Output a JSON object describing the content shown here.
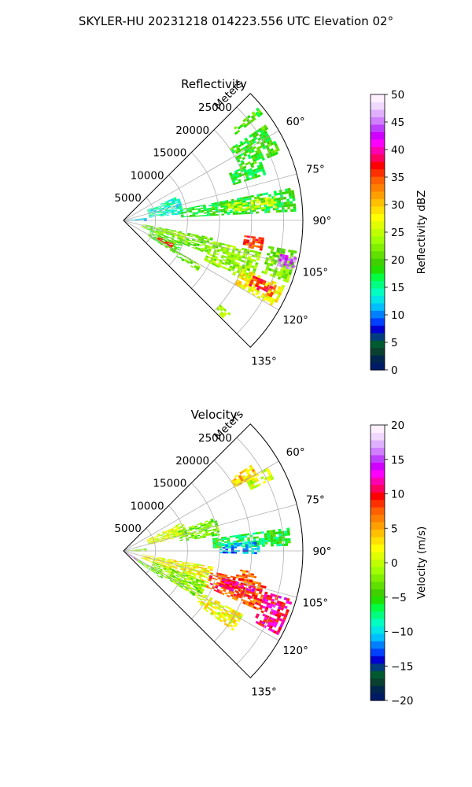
{
  "suptitle": "SKYLER-HU  20231218  014223.556 UTC Elevation 02°",
  "chart_data": [
    {
      "type": "heatmap",
      "projection": "polar-sector",
      "title": "Reflectivity",
      "azimuth_range_deg": [
        45,
        135
      ],
      "range_max_m": 28000,
      "radial_label": "Meters",
      "range_ticks": [
        "5000",
        "10000",
        "15000",
        "20000",
        "25000"
      ],
      "azimuth_ticks": [
        "60°",
        "75°",
        "90°",
        "105°",
        "120°",
        "135°"
      ],
      "grid": true,
      "colorbar": {
        "label": "Reflectivity dBZ",
        "min": 0,
        "max": 50,
        "ticks": [
          "0",
          "5",
          "10",
          "15",
          "20",
          "25",
          "30",
          "35",
          "40",
          "45",
          "50"
        ],
        "colors": [
          "#001a66",
          "#00264d",
          "#0a4030",
          "#005a30",
          "#003d80",
          "#0000d0",
          "#0040ff",
          "#0080ff",
          "#00c0ff",
          "#00e6e6",
          "#00ffc0",
          "#00ff80",
          "#00ff40",
          "#20e000",
          "#40d000",
          "#60e000",
          "#80f000",
          "#a0ff00",
          "#c0ff00",
          "#e0ff00",
          "#ffff00",
          "#ffe000",
          "#ffc000",
          "#ffa000",
          "#ff8000",
          "#ff6000",
          "#ff3000",
          "#ff0000",
          "#ff0060",
          "#ff00b0",
          "#ff00ff",
          "#d000ff",
          "#c040ff",
          "#d080ff",
          "#e0b0ff",
          "#f0d8ff",
          "#fff0ff"
        ]
      },
      "echo_regions": [
        {
          "az": [
            50,
            52
          ],
          "r": [
            22000,
            27000
          ],
          "value": 20
        },
        {
          "az": [
            56,
            66
          ],
          "r": [
            20000,
            26500
          ],
          "value": 19
        },
        {
          "az": [
            66,
            72
          ],
          "r": [
            18000,
            23000
          ],
          "value": 18
        },
        {
          "az": [
            66,
            84
          ],
          "r": [
            4000,
            9000
          ],
          "value": 14
        },
        {
          "az": [
            79,
            87
          ],
          "r": [
            9000,
            27000
          ],
          "value": 18
        },
        {
          "az": [
            81,
            85
          ],
          "r": [
            16000,
            24000
          ],
          "value": 25
        },
        {
          "az": [
            84,
            92
          ],
          "r": [
            500,
            3500
          ],
          "value": 12
        },
        {
          "az": [
            97,
            102
          ],
          "r": [
            19000,
            22000
          ],
          "value": 35
        },
        {
          "az": [
            101,
            111
          ],
          "r": [
            3000,
            14000
          ],
          "value": 21
        },
        {
          "az": [
            102,
            107
          ],
          "r": [
            6000,
            10000
          ],
          "value": 24
        },
        {
          "az": [
            103,
            116
          ],
          "r": [
            14000,
            22000
          ],
          "value": 23
        },
        {
          "az": [
            100,
            110
          ],
          "r": [
            23000,
            27500
          ],
          "value": 22
        },
        {
          "az": [
            102,
            106
          ],
          "r": [
            25000,
            27500
          ],
          "value": 44
        },
        {
          "az": [
            112,
            120
          ],
          "r": [
            20000,
            27000
          ],
          "value": 28
        },
        {
          "az": [
            113,
            117
          ],
          "r": [
            22000,
            26000
          ],
          "value": 36
        },
        {
          "az": [
            112,
            122
          ],
          "r": [
            4500,
            9500
          ],
          "value": 20
        },
        {
          "az": [
            115,
            119
          ],
          "r": [
            6000,
            8500
          ],
          "value": 36
        },
        {
          "az": [
            120,
            124
          ],
          "r": [
            10000,
            14000
          ],
          "value": 21
        },
        {
          "az": [
            131,
            134
          ],
          "r": [
            20000,
            22000
          ],
          "value": 24
        }
      ]
    },
    {
      "type": "heatmap",
      "projection": "polar-sector",
      "title": "Velocity",
      "azimuth_range_deg": [
        45,
        135
      ],
      "range_max_m": 28000,
      "radial_label": "Meters",
      "range_ticks": [
        "5000",
        "10000",
        "15000",
        "20000",
        "25000"
      ],
      "azimuth_ticks": [
        "60°",
        "75°",
        "90°",
        "105°",
        "120°",
        "135°"
      ],
      "grid": true,
      "colorbar": {
        "label": "Velocity (m/s)",
        "min": -20,
        "max": 20,
        "ticks": [
          "−20",
          "−15",
          "−10",
          "−5",
          "0",
          "5",
          "10",
          "15",
          "20"
        ],
        "colors": [
          "#001a66",
          "#00264d",
          "#0a4030",
          "#005a30",
          "#003d80",
          "#0000d0",
          "#0040ff",
          "#0080ff",
          "#00c0ff",
          "#00e6e6",
          "#00ffc0",
          "#00ff80",
          "#00ff40",
          "#20e000",
          "#40d000",
          "#60e000",
          "#80f000",
          "#a0ff00",
          "#c0ff00",
          "#e0ff00",
          "#ffff00",
          "#ffe000",
          "#ffc000",
          "#ffa000",
          "#ff8000",
          "#ff6000",
          "#ff3000",
          "#ff0000",
          "#ff0060",
          "#ff00b0",
          "#ff00ff",
          "#d000ff",
          "#c040ff",
          "#d080ff",
          "#e0b0ff",
          "#f0d8ff",
          "#fff0ff"
        ]
      },
      "echo_regions": [
        {
          "az": [
            56,
            60
          ],
          "r": [
            20000,
            24000
          ],
          "value": 4
        },
        {
          "az": [
            60,
            64
          ],
          "r": [
            22000,
            26000
          ],
          "value": 1
        },
        {
          "az": [
            64,
            76
          ],
          "r": [
            4000,
            10000
          ],
          "value": 1
        },
        {
          "az": [
            70,
            80
          ],
          "r": [
            9000,
            15000
          ],
          "value": -3
        },
        {
          "az": [
            82,
            88
          ],
          "r": [
            14000,
            26000
          ],
          "value": -6
        },
        {
          "az": [
            86,
            91
          ],
          "r": [
            15000,
            21000
          ],
          "value": -11
        },
        {
          "az": [
            84,
            92
          ],
          "r": [
            500,
            3500
          ],
          "value": -2
        },
        {
          "az": [
            99,
            104
          ],
          "r": [
            18000,
            21000
          ],
          "value": 7
        },
        {
          "az": [
            100,
            112
          ],
          "r": [
            3000,
            14000
          ],
          "value": 2
        },
        {
          "az": [
            103,
            113
          ],
          "r": [
            14000,
            23000
          ],
          "value": 8
        },
        {
          "az": [
            105,
            110
          ],
          "r": [
            16000,
            21000
          ],
          "value": 11
        },
        {
          "az": [
            106,
            118
          ],
          "r": [
            23000,
            27500
          ],
          "value": 11
        },
        {
          "az": [
            110,
            122
          ],
          "r": [
            5000,
            14000
          ],
          "value": -2
        },
        {
          "az": [
            118,
            126
          ],
          "r": [
            14000,
            21000
          ],
          "value": 2
        },
        {
          "az": [
            120,
            126
          ],
          "r": [
            2000,
            7000
          ],
          "value": -3
        },
        {
          "az": [
            123,
            126
          ],
          "r": [
            500,
            2500
          ],
          "value": 15
        }
      ]
    }
  ]
}
